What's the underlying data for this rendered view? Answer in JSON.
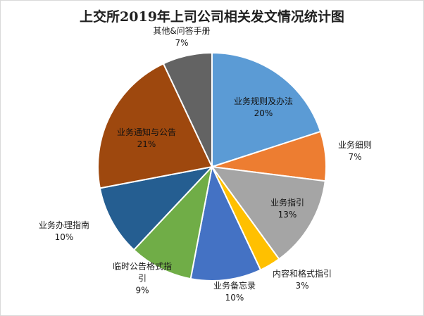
{
  "chart_data": {
    "type": "pie",
    "title": "上交所2019年上司公司相关发文情况统计图",
    "slices": [
      {
        "name": "业务规则及办法",
        "percent_label": "20%",
        "value": 20,
        "color": "#5B9BD5"
      },
      {
        "name": "业务细则",
        "percent_label": "7%",
        "value": 7,
        "color": "#ED7D31"
      },
      {
        "name": "业务指引",
        "percent_label": "13%",
        "value": 13,
        "color": "#A5A5A5"
      },
      {
        "name": "内容和格式指引",
        "percent_label": "3%",
        "value": 3,
        "color": "#FFC000"
      },
      {
        "name": "业务备忘录",
        "percent_label": "10%",
        "value": 10,
        "color": "#4472C4"
      },
      {
        "name_lines": [
          "临时公告格式指",
          "引"
        ],
        "percent_label": "9%",
        "value": 9,
        "color": "#70AD47"
      },
      {
        "name": "业务办理指南",
        "percent_label": "10%",
        "value": 10,
        "color": "#255E91"
      },
      {
        "name": "业务通知与公告",
        "percent_label": "21%",
        "value": 21,
        "color": "#9E480E"
      },
      {
        "name": "其他&问答手册",
        "percent_label": "7%",
        "value": 7,
        "color": "#636363"
      }
    ]
  }
}
